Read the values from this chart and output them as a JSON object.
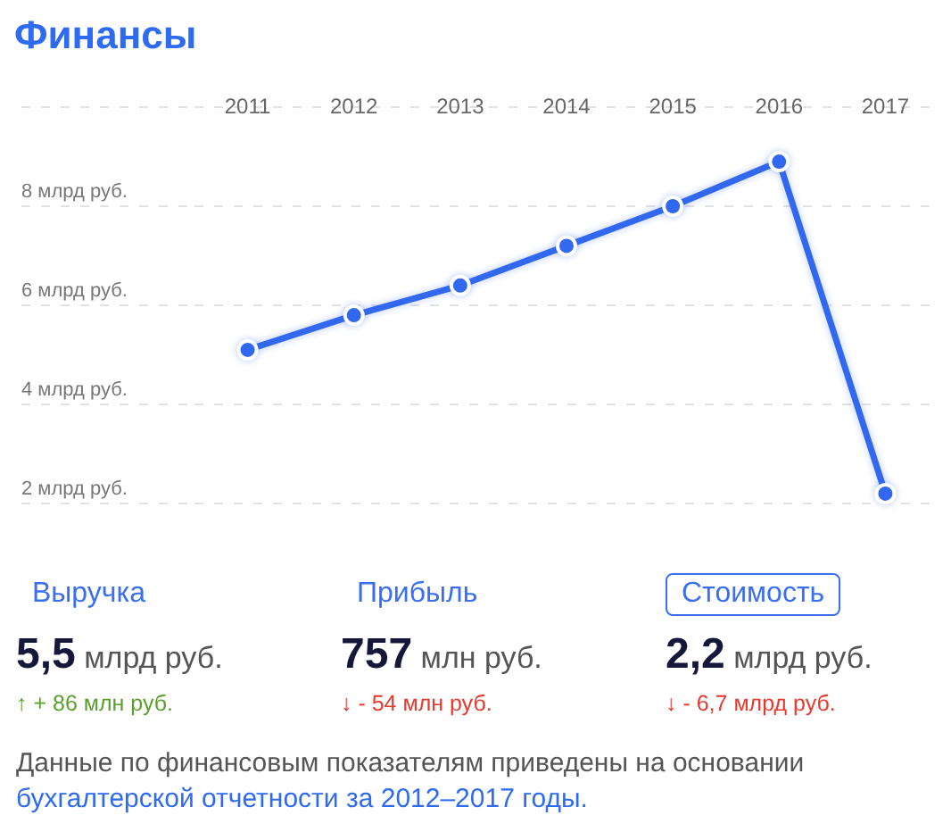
{
  "chart_data": {
    "type": "line",
    "title": "Финансы",
    "categories": [
      "2011",
      "2012",
      "2013",
      "2014",
      "2015",
      "2016",
      "2017"
    ],
    "values": [
      5.1,
      5.8,
      6.4,
      7.2,
      8.0,
      8.9,
      2.2
    ],
    "color": "#3268f0",
    "ylim": [
      2,
      10
    ],
    "yticks": [
      {
        "value": 2,
        "label": "2 млрд руб."
      },
      {
        "value": 4,
        "label": "4 млрд руб."
      },
      {
        "value": 6,
        "label": "6 млрд руб."
      },
      {
        "value": 8,
        "label": "8 млрд руб."
      },
      {
        "value": 10,
        "label": null
      }
    ],
    "grid": "y",
    "legend": false,
    "marker": "circle",
    "line_style": "solid",
    "annotations": [
      "Выручка",
      "5,5 млрд руб.",
      "↑ + 86 млн руб.",
      "Прибыль",
      "757 млн руб.",
      "↓ - 54 млн руб.",
      "Стоимость",
      "2,2 млрд руб.",
      "↓ - 6,7 млрд руб.",
      "Данные по финансовым показателям приведены на основании",
      "бухгалтерской отчетности за 2012–2017 годы."
    ]
  }
}
